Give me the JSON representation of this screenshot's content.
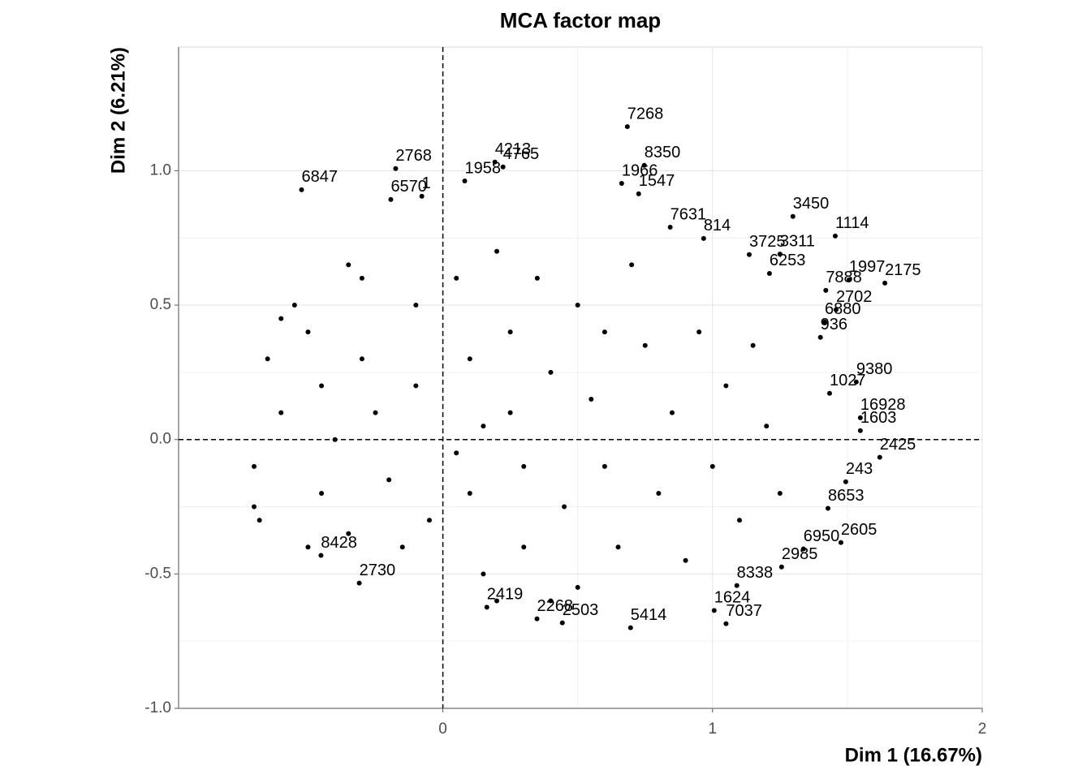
{
  "chart_data": {
    "type": "scatter",
    "title": "MCA factor map",
    "xlabel": "Dim 1 (16.67%)",
    "ylabel": "Dim 2 (6.21%)",
    "color": "#000000",
    "grid": true,
    "vline": 0,
    "hline": 0,
    "xlim": [
      -0.98,
      2.0
    ],
    "ylim": [
      -1.0,
      1.46
    ],
    "xticks": [
      0,
      1,
      2
    ],
    "yticks": [
      {
        "value": -1,
        "label": "-1.0"
      },
      {
        "value": -0.5,
        "label": "-0.5"
      },
      {
        "value": 0,
        "label": "0.0"
      },
      {
        "value": 0.5,
        "label": "0.5"
      },
      {
        "value": 1,
        "label": "1.0"
      }
    ],
    "x": [
      0.684,
      0.747,
      -0.175,
      0.663,
      1.298,
      1.455,
      1.506,
      1.639,
      1.25,
      1.42,
      1.458,
      1.416,
      1.4,
      1.434,
      1.533,
      1.548,
      1.548,
      1.62,
      1.494,
      1.428,
      1.476,
      1.337,
      1.256,
      1.09,
      1.006,
      1.05,
      0.696,
      0.443,
      0.349,
      0.163,
      -0.31,
      -0.452,
      -0.078,
      -0.193,
      -0.524,
      0.193,
      0.223,
      0.081,
      0.726,
      0.843,
      0.967,
      1.136,
      1.211,
      -0.65,
      -0.6,
      -0.7,
      -0.7,
      -0.68,
      -0.55,
      -0.5,
      -0.45,
      -0.4,
      -0.45,
      -0.35,
      -0.3,
      -0.3,
      -0.25,
      -0.2,
      -0.15,
      -0.1,
      -0.1,
      -0.05,
      -0.5,
      -0.6,
      -0.35,
      0.05,
      0.1,
      0.1,
      0.15,
      0.2,
      0.25,
      0.25,
      0.3,
      0.3,
      0.35,
      0.4,
      0.45,
      0.5,
      0.5,
      0.55,
      0.6,
      0.65,
      0.7,
      0.75,
      0.8,
      0.85,
      0.9,
      0.95,
      1.0,
      1.05,
      1.1,
      1.15,
      1.2,
      1.25,
      0.2,
      0.4,
      0.6,
      0.15,
      0.05
    ],
    "y": [
      1.164,
      1.02,
      1.008,
      0.953,
      0.83,
      0.757,
      0.594,
      0.582,
      0.69,
      0.555,
      0.483,
      0.437,
      0.38,
      0.172,
      0.214,
      0.081,
      0.033,
      -0.066,
      -0.157,
      -0.256,
      -0.383,
      -0.407,
      -0.474,
      -0.543,
      -0.636,
      -0.685,
      -0.7,
      -0.682,
      -0.667,
      -0.624,
      -0.534,
      -0.431,
      0.905,
      0.893,
      0.929,
      1.032,
      1.014,
      0.962,
      0.914,
      0.79,
      0.748,
      0.688,
      0.618,
      0.3,
      0.1,
      -0.1,
      -0.25,
      -0.3,
      0.5,
      0.4,
      0.2,
      0.0,
      -0.2,
      -0.35,
      0.6,
      0.3,
      0.1,
      -0.15,
      -0.4,
      0.5,
      0.2,
      -0.3,
      -0.4,
      0.45,
      0.65,
      0.6,
      0.3,
      -0.2,
      -0.5,
      0.7,
      0.4,
      0.1,
      -0.1,
      -0.4,
      0.6,
      0.25,
      -0.25,
      -0.55,
      0.5,
      0.15,
      -0.1,
      -0.4,
      0.65,
      0.35,
      -0.2,
      0.1,
      -0.45,
      0.4,
      -0.1,
      0.2,
      -0.3,
      0.35,
      0.05,
      -0.2,
      -0.6,
      -0.6,
      0.4,
      0.05,
      -0.05
    ],
    "labels": [
      "7268",
      "8350",
      "2768",
      "1966",
      "3450",
      "1114",
      "1997",
      "2175",
      "3311",
      "7888",
      "2702",
      "6880",
      "936",
      "1027",
      "9380",
      "16928",
      "1603",
      "2425",
      "243",
      "8653",
      "2605",
      "6950",
      "2985",
      "8338",
      "1624",
      "7037",
      "5414",
      "2503",
      "2268",
      "2419",
      "2730",
      "8428",
      "1",
      "6570",
      "6847",
      "4213",
      "4765",
      "1958",
      "1547",
      "7631",
      "814",
      "3725",
      "6253",
      null,
      null,
      null,
      null,
      null,
      null,
      null,
      null,
      null,
      null,
      null,
      null,
      null,
      null,
      null,
      null,
      null,
      null,
      null,
      null,
      null,
      null,
      null,
      null,
      null,
      null,
      null,
      null,
      null,
      null,
      null,
      null,
      null,
      null,
      null,
      null,
      null,
      null,
      null,
      null,
      null,
      null,
      null,
      null,
      null,
      null,
      null,
      null,
      null,
      null,
      null,
      null,
      null,
      null,
      null,
      null
    ]
  }
}
